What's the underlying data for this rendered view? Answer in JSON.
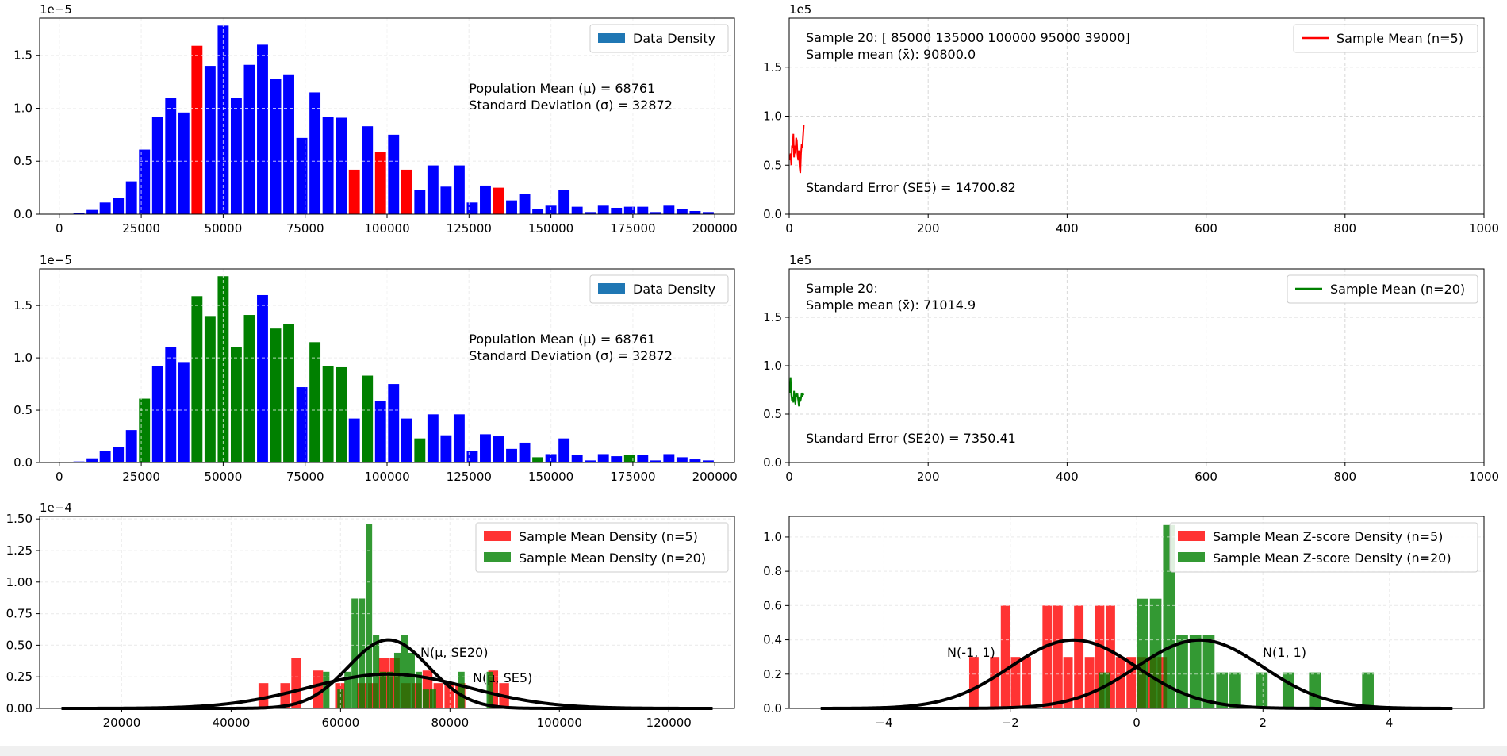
{
  "colors": {
    "blue": "#0000ff",
    "red": "#ff0000",
    "green": "#008000",
    "legend_patch": "#1f77b4",
    "curve": "#000000",
    "grid": "#d8d8d8"
  },
  "chart_data": [
    {
      "type": "bar",
      "id": "pop_hist_n5",
      "title": "",
      "xlim": [
        -6000,
        206000
      ],
      "ylim": [
        0,
        1.85e-05
      ],
      "xticks": [
        "0",
        "25000",
        "50000",
        "75000",
        "100000",
        "125000",
        "150000",
        "175000",
        "200000"
      ],
      "yticks": [
        "0.0",
        "0.5",
        "1.0",
        "1.5"
      ],
      "offset_text": "1e−5",
      "bin_width": 4000,
      "bin_starts": [
        0,
        4000,
        8000,
        12000,
        16000,
        20000,
        24000,
        28000,
        32000,
        36000,
        40000,
        44000,
        48000,
        52000,
        56000,
        60000,
        64000,
        68000,
        72000,
        76000,
        80000,
        84000,
        88000,
        92000,
        96000,
        100000,
        104000,
        108000,
        112000,
        116000,
        120000,
        124000,
        128000,
        132000,
        136000,
        140000,
        144000,
        148000,
        152000,
        156000,
        160000,
        164000,
        168000,
        172000,
        176000,
        180000,
        184000,
        188000,
        192000,
        196000
      ],
      "values_e5": [
        0.0,
        0.01,
        0.04,
        0.11,
        0.15,
        0.31,
        0.61,
        0.92,
        1.1,
        0.96,
        1.59,
        1.4,
        1.78,
        1.1,
        1.41,
        1.6,
        1.28,
        1.32,
        0.72,
        1.15,
        0.92,
        0.91,
        0.42,
        0.83,
        0.59,
        0.75,
        0.42,
        0.23,
        0.46,
        0.26,
        0.46,
        0.11,
        0.27,
        0.25,
        0.13,
        0.19,
        0.05,
        0.08,
        0.23,
        0.07,
        0.02,
        0.08,
        0.06,
        0.07,
        0.07,
        0.02,
        0.08,
        0.05,
        0.03,
        0.02
      ],
      "highlight": [
        10,
        22,
        24,
        26,
        33
      ],
      "legend": [
        "Data Density"
      ],
      "annotations": [
        "Population Mean (μ) = 68761",
        "Standard Deviation (σ) = 32872"
      ]
    },
    {
      "type": "line",
      "id": "sample_mean_n5",
      "xlim": [
        0,
        1000
      ],
      "ylim": [
        0,
        200000.0
      ],
      "xticks": [
        "0",
        "200",
        "400",
        "600",
        "800",
        "1000"
      ],
      "yticks": [
        "0.0",
        "0.5",
        "1.0",
        "1.5"
      ],
      "offset_text": "1e5",
      "y_e5": [
        0.55,
        0.62,
        0.5,
        0.7,
        0.68,
        0.82,
        0.58,
        0.7,
        0.62,
        0.78,
        0.75,
        0.6,
        0.55,
        0.65,
        0.48,
        0.42,
        0.62,
        0.72,
        0.68,
        0.8,
        0.91
      ],
      "legend": [
        "Sample Mean (n=5)"
      ],
      "annotations": [
        "Sample 20: [ 85000 135000 100000  95000  39000]",
        "Sample mean (x̄): 90800.0",
        "Standard Error (SE5) = 14700.82"
      ]
    },
    {
      "type": "bar",
      "id": "pop_hist_n20",
      "xlim": [
        -6000,
        206000
      ],
      "ylim": [
        0,
        1.85e-05
      ],
      "xticks": [
        "0",
        "25000",
        "50000",
        "75000",
        "100000",
        "125000",
        "150000",
        "175000",
        "200000"
      ],
      "yticks": [
        "0.0",
        "0.5",
        "1.0",
        "1.5"
      ],
      "offset_text": "1e−5",
      "highlight": [
        6,
        10,
        11,
        12,
        13,
        14,
        16,
        17,
        19,
        20,
        21,
        23,
        27,
        36,
        43
      ],
      "legend": [
        "Data Density"
      ],
      "annotations": [
        "Population Mean (μ) = 68761",
        "Standard Deviation (σ) = 32872"
      ]
    },
    {
      "type": "line",
      "id": "sample_mean_n20",
      "xlim": [
        0,
        1000
      ],
      "ylim": [
        0,
        200000.0
      ],
      "xticks": [
        "0",
        "200",
        "400",
        "600",
        "800",
        "1000"
      ],
      "yticks": [
        "0.0",
        "0.5",
        "1.0",
        "1.5"
      ],
      "offset_text": "1e5",
      "y_e5": [
        0.72,
        0.88,
        0.7,
        0.64,
        0.68,
        0.62,
        0.74,
        0.66,
        0.6,
        0.72,
        0.69,
        0.7,
        0.64,
        0.58,
        0.68,
        0.63,
        0.66,
        0.72,
        0.69,
        0.7,
        0.71
      ],
      "legend": [
        "Sample Mean (n=20)"
      ],
      "annotations": [
        "Sample 20:",
        "Sample mean (x̄): 71014.9",
        "Standard Error (SE20) = 7350.41"
      ]
    },
    {
      "type": "bar",
      "id": "sample_mean_density",
      "xlim": [
        5000,
        132000
      ],
      "ylim": [
        0,
        0.000152
      ],
      "xticks": [
        "20000",
        "40000",
        "60000",
        "80000",
        "100000",
        "120000"
      ],
      "yticks": [
        "0.00",
        "0.25",
        "0.50",
        "0.75",
        "1.00",
        "1.25",
        "1.50"
      ],
      "offset_text": "1e−4",
      "series": [
        {
          "name": "Sample Mean Density (n=5)",
          "bin_starts": [
            45000,
            49000,
            51000,
            55000,
            59000,
            63000,
            65000,
            67000,
            69000,
            71000,
            73000,
            75000,
            77000,
            79000,
            81000,
            87000,
            89000
          ],
          "width": 2000,
          "values_e4": [
            0.2,
            0.2,
            0.4,
            0.3,
            0.2,
            0.2,
            0.2,
            0.4,
            0.4,
            0.2,
            0.2,
            0.3,
            0.2,
            0.2,
            0.2,
            0.3,
            0.2
          ]
        },
        {
          "name": "Sample Mean Density (n=20)",
          "bin_starts": [
            56800,
            59400,
            60700,
            62000,
            63300,
            64600,
            65900,
            67200,
            68500,
            69800,
            71100,
            72400,
            73700,
            75000,
            76300,
            81500,
            86700
          ],
          "width": 1300,
          "values_e4": [
            0.29,
            0.15,
            0.29,
            0.87,
            0.87,
            1.46,
            0.58,
            0.29,
            0.29,
            0.44,
            0.58,
            0.44,
            0.29,
            0.15,
            0.15,
            0.29,
            0.29
          ]
        }
      ],
      "curves": [
        {
          "label": "N(μ, SE20)",
          "mean": 68761,
          "sd": 7350.41
        },
        {
          "label": "N(μ, SE5)",
          "mean": 68761,
          "sd": 14700.82
        }
      ],
      "legend": [
        "Sample Mean Density (n=5)",
        "Sample Mean Density (n=20)"
      ]
    },
    {
      "type": "bar",
      "id": "zscore_density",
      "xlim": [
        -5.5,
        5.5
      ],
      "ylim": [
        0,
        1.12
      ],
      "xticks": [
        "−4",
        "−2",
        "0",
        "2",
        "4"
      ],
      "yticks": [
        "0.0",
        "0.2",
        "0.4",
        "0.6",
        "0.8",
        "1.0"
      ],
      "series": [
        {
          "name": "Sample Mean Z-score Density (n=5)",
          "bin_starts": [
            -2.65,
            -2.32,
            -2.15,
            -1.99,
            -1.82,
            -1.49,
            -1.32,
            -1.16,
            -0.99,
            -0.82,
            -0.66,
            -0.49,
            -0.33,
            -0.16,
            0.0,
            0.17,
            0.33
          ],
          "width": 0.166,
          "values": [
            0.3,
            0.3,
            0.6,
            0.3,
            0.3,
            0.6,
            0.6,
            0.3,
            0.6,
            0.3,
            0.6,
            0.6,
            0.3,
            0.3,
            0.3,
            0.3,
            0.3
          ]
        },
        {
          "name": "Sample Mean Z-score Density (n=20)",
          "bin_starts": [
            -0.6,
            0.0,
            0.21,
            0.42,
            0.63,
            0.84,
            1.05,
            1.26,
            1.47,
            1.89,
            2.31,
            2.73,
            3.57
          ],
          "width": 0.205,
          "values": [
            0.21,
            0.64,
            0.64,
            1.07,
            0.43,
            0.43,
            0.43,
            0.21,
            0.21,
            0.21,
            0.21,
            0.21,
            0.21
          ]
        }
      ],
      "curves": [
        {
          "label": "N(-1, 1)",
          "mean": -1,
          "sd": 1
        },
        {
          "label": "N(1, 1)",
          "mean": 1,
          "sd": 1
        }
      ],
      "legend": [
        "Sample Mean Z-score Density (n=5)",
        "Sample Mean Z-score Density (n=20)"
      ]
    }
  ]
}
